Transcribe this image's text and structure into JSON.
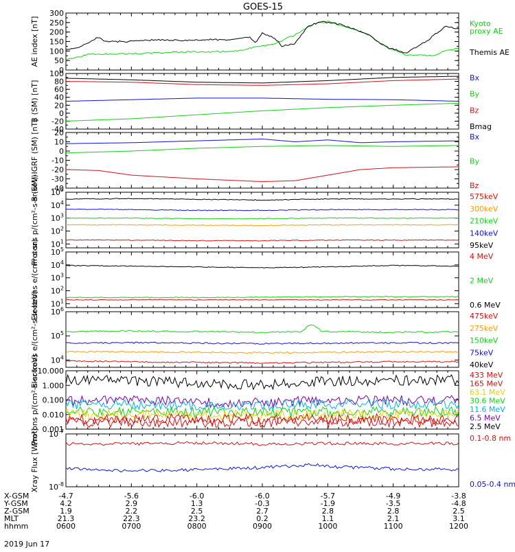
{
  "title": "GOES-15",
  "date_label": "2019 Jun 17",
  "colors": {
    "black": "#000000",
    "red": "#d01010",
    "green": "#10d010",
    "blue": "#1010d0",
    "orange": "#ff9900",
    "purple": "#7a00a0",
    "cyan": "#00b0e0",
    "yellow": "#e6d000"
  },
  "chart_data": [
    {
      "type": "line",
      "ylabel": "AE index [nT]",
      "yticks": [
        "300",
        "250",
        "200",
        "150",
        "100",
        "50",
        "0"
      ],
      "ylim": [
        0,
        300
      ],
      "legend": [
        {
          "name": "Kyoto",
          "color": "green"
        },
        {
          "name": "proxy AE",
          "color": "green"
        },
        {
          "name": "Themis AE",
          "color": "black"
        }
      ],
      "series": [
        {
          "name": "Kyoto",
          "color": "green",
          "x": [
            6.0,
            6.2,
            6.4,
            6.6,
            7.0,
            7.4,
            7.8,
            8.2,
            8.6,
            8.9,
            9.0,
            9.2,
            9.5,
            9.8,
            10.0,
            10.2,
            10.6,
            10.9,
            11.2,
            11.6,
            11.8,
            12.0
          ],
          "y": [
            55,
            70,
            85,
            85,
            85,
            90,
            95,
            95,
            100,
            120,
            125,
            140,
            185,
            245,
            255,
            235,
            190,
            120,
            80,
            75,
            100,
            115
          ]
        },
        {
          "name": "Themis AE",
          "color": "black",
          "x": [
            6.0,
            6.2,
            6.3,
            6.5,
            6.6,
            6.8,
            7.0,
            7.4,
            7.8,
            8.2,
            8.6,
            8.8,
            8.9,
            9.0,
            9.2,
            9.3,
            9.5,
            9.7,
            9.9,
            10.0,
            10.2,
            10.6,
            10.9,
            11.2,
            11.5,
            11.8,
            12.0
          ],
          "y": [
            105,
            120,
            135,
            175,
            150,
            150,
            150,
            160,
            155,
            160,
            160,
            175,
            140,
            195,
            165,
            125,
            140,
            230,
            255,
            250,
            240,
            190,
            120,
            90,
            150,
            230,
            215
          ]
        }
      ]
    },
    {
      "type": "line",
      "ylabel": "B (SM) [nT]",
      "yticks": [
        "100",
        "80",
        "60",
        "40",
        "20",
        "0",
        "-20",
        "-40"
      ],
      "ylim": [
        -40,
        100
      ],
      "legend": [
        {
          "name": "Bx",
          "color": "blue"
        },
        {
          "name": "By",
          "color": "green"
        },
        {
          "name": "Bz",
          "color": "red"
        },
        {
          "name": "Bmag",
          "color": "black"
        }
      ],
      "series": [
        {
          "name": "Bmag",
          "color": "black",
          "x": [
            6,
            7,
            8,
            9,
            10,
            11,
            12
          ],
          "y": [
            88,
            84,
            78,
            76,
            82,
            90,
            93
          ]
        },
        {
          "name": "Bz",
          "color": "red",
          "x": [
            6,
            7,
            8,
            9,
            10,
            11,
            12
          ],
          "y": [
            80,
            78,
            72,
            70,
            74,
            82,
            86
          ]
        },
        {
          "name": "Bx",
          "color": "blue",
          "x": [
            6,
            7,
            8,
            9,
            10,
            11,
            12
          ],
          "y": [
            30,
            34,
            38,
            38,
            35,
            34,
            30
          ]
        },
        {
          "name": "By",
          "color": "green",
          "x": [
            6,
            7,
            8,
            9,
            10,
            11,
            12
          ],
          "y": [
            -20,
            -14,
            -4,
            6,
            14,
            20,
            25
          ]
        }
      ]
    },
    {
      "type": "line",
      "ylabel": "B (SM)-IGRF (SM) [nT]",
      "yticks": [
        "20",
        "10",
        "0",
        "-10",
        "-20",
        "-30",
        "-40"
      ],
      "ylim": [
        -40,
        20
      ],
      "legend": [
        {
          "name": "Bx",
          "color": "blue"
        },
        {
          "name": "By",
          "color": "green"
        },
        {
          "name": "Bz",
          "color": "red"
        }
      ],
      "series": [
        {
          "name": "Bx",
          "color": "blue",
          "x": [
            6,
            7,
            8,
            9,
            9.5,
            10,
            10.5,
            11,
            12
          ],
          "y": [
            8,
            9,
            11,
            13,
            10,
            12,
            9,
            10,
            11
          ]
        },
        {
          "name": "By",
          "color": "green",
          "x": [
            6,
            7,
            8,
            9,
            10,
            11,
            12
          ],
          "y": [
            -2,
            0,
            3,
            5,
            6,
            5,
            6
          ]
        },
        {
          "name": "Bz",
          "color": "red",
          "x": [
            6,
            6.5,
            7,
            8,
            9,
            9.5,
            10,
            10.5,
            11,
            12
          ],
          "y": [
            -20,
            -21,
            -26,
            -30,
            -33,
            -32,
            -26,
            -20,
            -18,
            -17
          ]
        }
      ]
    },
    {
      "type": "line",
      "ylabel": "Protons p/(cm²-s-sr-keV)",
      "yticks": [
        "10^5",
        "10^4",
        "10^3",
        "10^2",
        "10^1"
      ],
      "yscale": "log",
      "ylim": [
        5,
        100000
      ],
      "legend": [
        {
          "name": "575keV",
          "color": "red"
        },
        {
          "name": "300keV",
          "color": "orange"
        },
        {
          "name": "210keV",
          "color": "green"
        },
        {
          "name": "140keV",
          "color": "blue"
        },
        {
          "name": "95keV",
          "color": "black"
        }
      ],
      "series": [
        {
          "name": "95keV",
          "color": "black",
          "x": [
            6,
            7,
            8,
            9,
            10,
            11,
            12
          ],
          "y": [
            30000,
            32000,
            28000,
            25000,
            30000,
            30000,
            30000
          ]
        },
        {
          "name": "140keV",
          "color": "blue",
          "x": [
            6,
            7,
            8,
            9,
            10,
            11,
            12
          ],
          "y": [
            5000,
            4500,
            4000,
            4000,
            4500,
            4500,
            4500
          ]
        },
        {
          "name": "210keV",
          "color": "green",
          "x": [
            6,
            7,
            8,
            9,
            10,
            11,
            12
          ],
          "y": [
            1000,
            1000,
            900,
            900,
            1000,
            1000,
            1000
          ]
        },
        {
          "name": "300keV",
          "color": "orange",
          "x": [
            6,
            7,
            8,
            9,
            10,
            11,
            12
          ],
          "y": [
            300,
            300,
            280,
            270,
            300,
            300,
            300
          ]
        },
        {
          "name": "575keV",
          "color": "red",
          "x": [
            6,
            7,
            8,
            9,
            10,
            11,
            12
          ],
          "y": [
            20,
            20,
            18,
            18,
            20,
            20,
            20
          ]
        }
      ]
    },
    {
      "type": "line",
      "ylabel": "Electrons e/(cm²-s-sr)",
      "yticks": [
        "10^5",
        "10^4",
        "10^3",
        "10^2",
        "10^1"
      ],
      "yscale": "log",
      "ylim": [
        5,
        100000
      ],
      "legend": [
        {
          "name": "4 MeV",
          "color": "red"
        },
        {
          "name": "2 MeV",
          "color": "green"
        },
        {
          "name": "0.6 MeV",
          "color": "black"
        }
      ],
      "series": [
        {
          "name": "0.6 MeV",
          "color": "black",
          "x": [
            6,
            7,
            8,
            9,
            10,
            11,
            12
          ],
          "y": [
            9000,
            8000,
            7000,
            6000,
            7000,
            9000,
            8000
          ]
        },
        {
          "name": "2 MeV",
          "color": "green",
          "x": [
            6,
            7,
            8,
            9,
            10,
            11,
            12
          ],
          "y": [
            30,
            30,
            30,
            32,
            35,
            35,
            35
          ]
        },
        {
          "name": "4 MeV",
          "color": "red",
          "x": [
            6,
            7,
            8,
            9,
            10,
            11,
            12
          ],
          "y": [
            20,
            20,
            20,
            20,
            20,
            20,
            20
          ]
        }
      ]
    },
    {
      "type": "line",
      "ylabel": "Electrons e/(cm²-s-sr-keV)",
      "yticks": [
        "10^6",
        "10^5",
        "10^4"
      ],
      "yscale": "log",
      "ylim": [
        5000,
        1000000
      ],
      "legend": [
        {
          "name": "475keV",
          "color": "red"
        },
        {
          "name": "275keV",
          "color": "orange"
        },
        {
          "name": "150keV",
          "color": "green"
        },
        {
          "name": "75keV",
          "color": "blue"
        },
        {
          "name": "40keV",
          "color": "black"
        }
      ],
      "series": [
        {
          "name": "150keV",
          "color": "green",
          "x": [
            6,
            7,
            8,
            9,
            9.6,
            9.75,
            9.9,
            10,
            11,
            12
          ],
          "y": [
            150000,
            160000,
            150000,
            140000,
            150000,
            300000,
            160000,
            150000,
            140000,
            150000
          ]
        },
        {
          "name": "75keV",
          "color": "blue",
          "x": [
            6,
            7,
            8,
            9,
            10,
            11,
            12
          ],
          "y": [
            50000,
            52000,
            50000,
            48000,
            50000,
            52000,
            50000
          ]
        },
        {
          "name": "275keV",
          "color": "orange",
          "x": [
            6,
            7,
            8,
            9,
            10,
            11,
            12
          ],
          "y": [
            22000,
            22000,
            21000,
            20000,
            21000,
            22000,
            22000
          ]
        },
        {
          "name": "475keV",
          "color": "red",
          "x": [
            6,
            7,
            8,
            9,
            10,
            11,
            12
          ],
          "y": [
            9000,
            8500,
            8000,
            7500,
            8000,
            8500,
            8500
          ]
        }
      ]
    },
    {
      "type": "line",
      "ylabel": "Protons p/(cm²-s-sr-keV)",
      "yticks": [
        "10.000",
        "1.000",
        "0.100",
        "0.010",
        "0.001"
      ],
      "yscale": "log",
      "ylim": [
        0.001,
        10
      ],
      "legend": [
        {
          "name": "433 MeV",
          "color": "red"
        },
        {
          "name": "165 MeV",
          "color": "red"
        },
        {
          "name": "63.1 MeV",
          "color": "yellow"
        },
        {
          "name": "30.6 MeV",
          "color": "green"
        },
        {
          "name": "11.6 MeV",
          "color": "cyan"
        },
        {
          "name": "6.5 MeV",
          "color": "purple"
        },
        {
          "name": "2.5 MeV",
          "color": "black"
        }
      ],
      "series": [
        {
          "name": "2.5 MeV",
          "color": "black",
          "x": [
            6,
            7,
            8,
            9,
            10,
            11,
            12
          ],
          "y": [
            2.5,
            2.0,
            1.5,
            1.0,
            2.0,
            2.2,
            2.4
          ]
        },
        {
          "name": "6.5 MeV",
          "color": "purple",
          "x": [
            6,
            7,
            8,
            9,
            10,
            11,
            12
          ],
          "y": [
            0.08,
            0.09,
            0.07,
            0.06,
            0.09,
            0.09,
            0.09
          ]
        },
        {
          "name": "11.6 MeV",
          "color": "cyan",
          "x": [
            6,
            7,
            8,
            9,
            10,
            11,
            12
          ],
          "y": [
            0.05,
            0.05,
            0.04,
            0.04,
            0.05,
            0.05,
            0.05
          ]
        },
        {
          "name": "30.6 MeV",
          "color": "green",
          "x": [
            6,
            7,
            8,
            9,
            10,
            11,
            12
          ],
          "y": [
            0.015,
            0.015,
            0.014,
            0.013,
            0.015,
            0.015,
            0.015
          ]
        },
        {
          "name": "63.1 MeV",
          "color": "yellow",
          "x": [
            6,
            7,
            8,
            9,
            10,
            11,
            12
          ],
          "y": [
            0.01,
            0.01,
            0.009,
            0.009,
            0.01,
            0.01,
            0.01
          ]
        },
        {
          "name": "165 MeV",
          "color": "red",
          "x": [
            6,
            7,
            8,
            9,
            10,
            11,
            12
          ],
          "y": [
            0.005,
            0.005,
            0.005,
            0.005,
            0.005,
            0.005,
            0.005
          ]
        },
        {
          "name": "433 MeV",
          "color": "red",
          "x": [
            6,
            7,
            8,
            9,
            10,
            11,
            12
          ],
          "y": [
            0.003,
            0.003,
            0.003,
            0.003,
            0.003,
            0.003,
            0.003
          ]
        }
      ]
    },
    {
      "type": "line",
      "ylabel": "Xray Flux [W/m²]",
      "yticks": [
        "10^-7",
        "10^-8"
      ],
      "yscale": "log",
      "ylim": [
        1e-08,
        1e-07
      ],
      "legend": [
        {
          "name": "0.1-0.8 nm",
          "color": "red"
        },
        {
          "name": "0.05-0.4 nm",
          "color": "blue"
        }
      ],
      "series": [
        {
          "name": "0.1-0.8 nm",
          "color": "red",
          "x": [
            6,
            7,
            8,
            9,
            10,
            11,
            12
          ],
          "y": [
            6.5e-08,
            6.5e-08,
            6.8e-08,
            6.4e-08,
            6.6e-08,
            6.5e-08,
            6.6e-08
          ]
        },
        {
          "name": "0.05-0.4 nm",
          "color": "blue",
          "x": [
            6,
            7,
            8,
            9,
            9.8,
            10,
            11,
            12
          ],
          "y": [
            2.2e-08,
            2e-08,
            2.1e-08,
            2.3e-08,
            2.6e-08,
            2.4e-08,
            2.2e-08,
            2.1e-08
          ]
        }
      ]
    }
  ],
  "footer": {
    "rows": [
      {
        "label": "X-GSM",
        "values": [
          "-4.7",
          "-5.6",
          "-6.0",
          "-6.0",
          "-5.7",
          "-4.9",
          "-3.8"
        ]
      },
      {
        "label": "Y-GSM",
        "values": [
          "4.2",
          "2.9",
          "1.3",
          "-0.3",
          "-1.9",
          "-3.5",
          "-4.8"
        ]
      },
      {
        "label": "Z-GSM",
        "values": [
          "1.9",
          "2.2",
          "2.5",
          "2.7",
          "2.8",
          "2.8",
          "2.5"
        ]
      },
      {
        "label": "MLT",
        "values": [
          "21.3",
          "22.3",
          "23.2",
          "0.2",
          "1.1",
          "2.1",
          "3.1"
        ]
      },
      {
        "label": "hhmm",
        "values": [
          "0600",
          "0700",
          "0800",
          "0900",
          "1000",
          "1100",
          "1200"
        ]
      }
    ]
  }
}
